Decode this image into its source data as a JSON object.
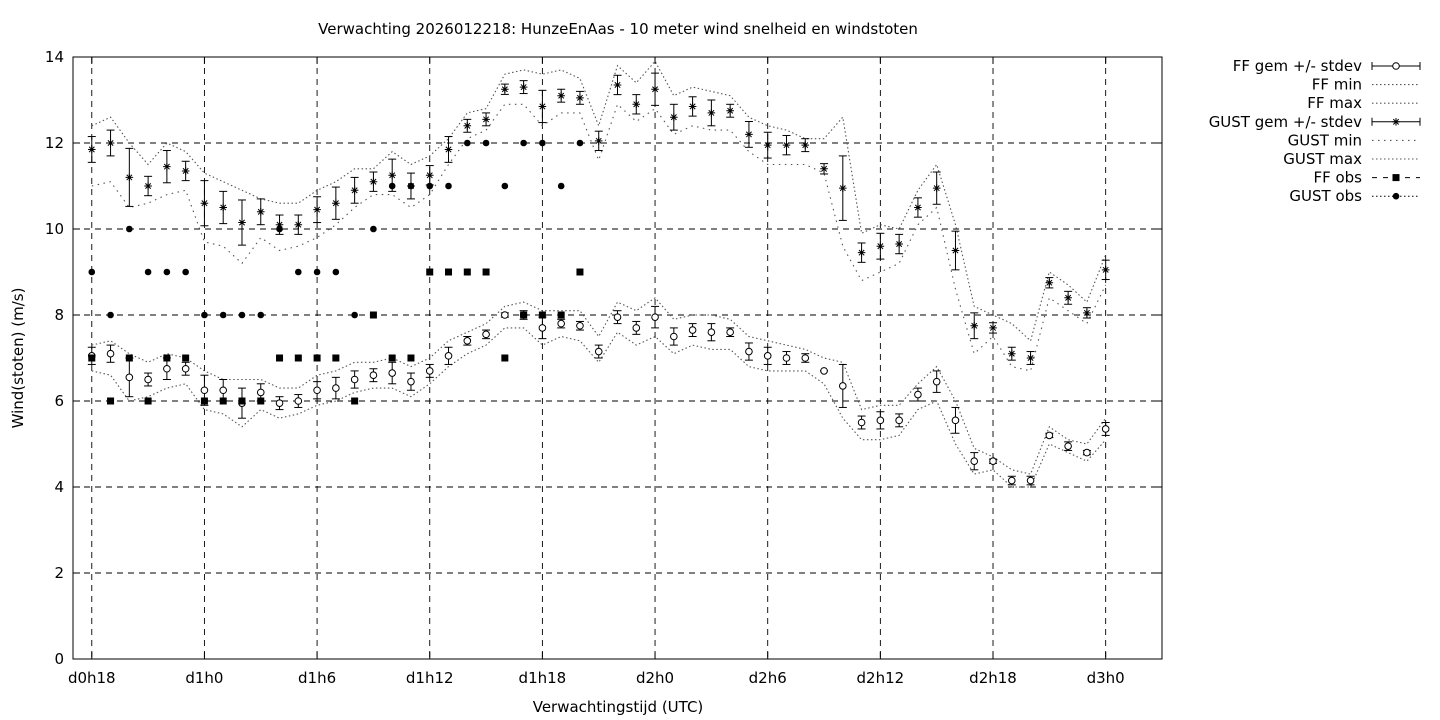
{
  "chart_data": {
    "type": "scatter",
    "title": "Verwachting 2026012218: HunzeEnAas - 10 meter wind snelheid en windstoten",
    "xlabel": "Verwachtingstijd (UTC)",
    "ylabel": "Wind(stoten) (m/s)",
    "xlim": [
      17,
      75
    ],
    "ylim": [
      0,
      14
    ],
    "grid": true,
    "legend_position": "outside-right",
    "x_unit": "hours since d0h0",
    "x_ticks": [
      {
        "x": 18,
        "label": "d0h18"
      },
      {
        "x": 24,
        "label": "d1h0"
      },
      {
        "x": 30,
        "label": "d1h6"
      },
      {
        "x": 36,
        "label": "d1h12"
      },
      {
        "x": 42,
        "label": "d1h18"
      },
      {
        "x": 48,
        "label": "d2h0"
      },
      {
        "x": 54,
        "label": "d2h6"
      },
      {
        "x": 60,
        "label": "d2h12"
      },
      {
        "x": 66,
        "label": "d2h18"
      },
      {
        "x": 72,
        "label": "d3h0"
      }
    ],
    "y_ticks": [
      0,
      2,
      4,
      6,
      8,
      10,
      12,
      14
    ],
    "x": [
      18,
      19,
      20,
      21,
      22,
      23,
      24,
      25,
      26,
      27,
      28,
      29,
      30,
      31,
      32,
      33,
      34,
      35,
      36,
      37,
      38,
      39,
      40,
      41,
      42,
      43,
      44,
      45,
      46,
      47,
      48,
      49,
      50,
      51,
      52,
      53,
      54,
      55,
      56,
      57,
      58,
      59,
      60,
      61,
      62,
      63,
      64,
      65,
      66,
      67,
      68,
      69,
      70,
      71,
      72
    ],
    "series": [
      {
        "name": "FF gem +/- stdev",
        "marker": "open-circle-errorbar",
        "values": [
          7.05,
          7.1,
          6.55,
          6.5,
          6.75,
          6.75,
          6.25,
          6.25,
          5.95,
          6.2,
          5.95,
          6.0,
          6.25,
          6.3,
          6.5,
          6.6,
          6.65,
          6.45,
          6.7,
          7.05,
          7.4,
          7.55,
          8.0,
          8.0,
          7.7,
          7.8,
          7.75,
          7.15,
          7.95,
          7.7,
          7.95,
          7.5,
          7.65,
          7.6,
          7.6,
          7.15,
          7.05,
          7.0,
          7.0,
          6.7,
          6.35,
          5.5,
          5.55,
          5.55,
          6.15,
          6.45,
          5.55,
          4.6,
          4.6,
          4.15,
          4.15,
          5.2,
          4.95,
          4.8,
          5.35
        ],
        "stdev": [
          0.2,
          0.2,
          0.45,
          0.15,
          0.25,
          0.15,
          0.35,
          0.25,
          0.35,
          0.2,
          0.15,
          0.15,
          0.2,
          0.25,
          0.2,
          0.15,
          0.25,
          0.2,
          0.15,
          0.2,
          0.1,
          0.1,
          0.05,
          0.1,
          0.25,
          0.1,
          0.1,
          0.15,
          0.15,
          0.15,
          0.25,
          0.2,
          0.15,
          0.2,
          0.1,
          0.2,
          0.2,
          0.15,
          0.1,
          0.0,
          0.5,
          0.15,
          0.2,
          0.15,
          0.15,
          0.25,
          0.3,
          0.2,
          0.05,
          0.1,
          0.1,
          0.05,
          0.1,
          0.05,
          0.15
        ]
      },
      {
        "name": "FF min",
        "line": "dotted",
        "values": [
          6.7,
          6.6,
          6.0,
          6.1,
          6.3,
          6.4,
          5.8,
          5.7,
          5.4,
          5.8,
          5.6,
          5.7,
          5.9,
          6.0,
          6.2,
          6.3,
          6.3,
          6.1,
          6.4,
          6.8,
          7.1,
          7.3,
          7.7,
          7.7,
          7.3,
          7.5,
          7.4,
          6.9,
          7.6,
          7.3,
          7.5,
          7.1,
          7.3,
          7.2,
          7.2,
          6.8,
          6.7,
          6.7,
          6.7,
          6.4,
          5.6,
          5.1,
          5.1,
          5.2,
          5.8,
          6.0,
          5.0,
          4.3,
          4.4,
          4.0,
          4.0,
          5.0,
          4.8,
          4.6,
          5.1
        ]
      },
      {
        "name": "FF max",
        "line": "dotted",
        "values": [
          7.3,
          7.4,
          7.1,
          6.9,
          7.1,
          7.0,
          6.7,
          6.5,
          6.5,
          6.5,
          6.3,
          6.3,
          6.6,
          6.7,
          6.9,
          6.9,
          7.0,
          6.8,
          7.0,
          7.4,
          7.6,
          7.8,
          8.2,
          8.3,
          8.1,
          8.1,
          8.1,
          7.5,
          8.3,
          8.1,
          8.4,
          7.9,
          8.0,
          8.0,
          7.9,
          7.5,
          7.4,
          7.3,
          7.2,
          7.0,
          6.9,
          5.8,
          5.9,
          5.9,
          6.4,
          6.8,
          6.0,
          4.9,
          4.7,
          4.4,
          4.3,
          5.4,
          5.1,
          5.0,
          5.6
        ]
      },
      {
        "name": "GUST gem +/- stdev",
        "marker": "star-errorbar",
        "values": [
          11.85,
          12.0,
          11.2,
          11.0,
          11.45,
          11.35,
          10.6,
          10.5,
          10.15,
          10.4,
          10.1,
          10.1,
          10.45,
          10.6,
          10.9,
          11.1,
          11.25,
          11.0,
          11.25,
          11.85,
          12.4,
          12.55,
          13.25,
          13.3,
          12.85,
          13.1,
          13.05,
          12.05,
          13.35,
          12.9,
          13.25,
          12.6,
          12.85,
          12.7,
          12.75,
          12.2,
          11.95,
          11.95,
          11.95,
          11.4,
          10.95,
          9.45,
          9.6,
          9.65,
          10.5,
          10.95,
          9.5,
          7.75,
          7.7,
          7.1,
          7.0,
          8.75,
          8.4,
          8.05,
          9.05
        ]
      },
      {
        "name": "GUST min",
        "line": "loose-dotted",
        "values": [
          11.0,
          11.1,
          10.5,
          10.6,
          10.8,
          10.9,
          9.7,
          9.6,
          9.2,
          9.8,
          9.5,
          9.6,
          9.8,
          10.1,
          10.5,
          10.8,
          10.8,
          10.5,
          10.8,
          11.5,
          12.1,
          12.3,
          12.9,
          12.9,
          12.4,
          12.7,
          12.7,
          11.6,
          12.9,
          12.5,
          12.8,
          12.2,
          12.4,
          12.3,
          12.3,
          11.8,
          11.5,
          11.5,
          11.5,
          11.3,
          9.6,
          8.8,
          9.0,
          9.2,
          10.1,
          10.5,
          8.6,
          7.1,
          7.5,
          6.8,
          6.7,
          8.4,
          8.1,
          7.8,
          8.7
        ]
      },
      {
        "name": "GUST max",
        "line": "dotted",
        "values": [
          12.4,
          12.6,
          12.0,
          11.5,
          12.0,
          11.8,
          11.3,
          11.1,
          10.9,
          10.7,
          10.6,
          10.6,
          10.9,
          11.1,
          11.4,
          11.4,
          11.8,
          11.5,
          11.7,
          12.1,
          12.7,
          12.8,
          13.6,
          13.7,
          13.6,
          13.7,
          13.5,
          12.4,
          13.8,
          13.4,
          13.9,
          13.1,
          13.3,
          13.2,
          13.1,
          12.6,
          12.4,
          12.3,
          12.1,
          12.1,
          12.6,
          9.9,
          10.1,
          10.0,
          10.9,
          11.5,
          10.1,
          8.2,
          8.0,
          7.8,
          7.4,
          9.0,
          8.7,
          8.3,
          9.4
        ]
      },
      {
        "name": "FF obs",
        "marker": "filled-square",
        "x": [
          18,
          19,
          20,
          21,
          22,
          23,
          24,
          25,
          26,
          27,
          28,
          29,
          30,
          31,
          32,
          33,
          34,
          35,
          36,
          37,
          38,
          39,
          40,
          41,
          42,
          43,
          44
        ],
        "values": [
          7,
          6,
          7,
          6,
          7,
          7,
          6,
          6,
          6,
          6,
          7,
          7,
          7,
          7,
          6,
          8,
          7,
          7,
          9,
          9,
          9,
          9,
          7,
          8,
          8,
          8,
          9
        ]
      },
      {
        "name": "GUST obs",
        "marker": "filled-circle",
        "x": [
          18,
          19,
          20,
          21,
          22,
          23,
          24,
          25,
          26,
          27,
          28,
          29,
          30,
          31,
          32,
          33,
          34,
          35,
          36,
          37,
          38,
          39,
          40,
          41,
          42,
          43,
          44
        ],
        "values": [
          9,
          8,
          10,
          9,
          9,
          9,
          8,
          8,
          8,
          8,
          10,
          9,
          9,
          9,
          8,
          10,
          11,
          11,
          11,
          11,
          12,
          12,
          11,
          12,
          12,
          11,
          12
        ]
      }
    ]
  }
}
